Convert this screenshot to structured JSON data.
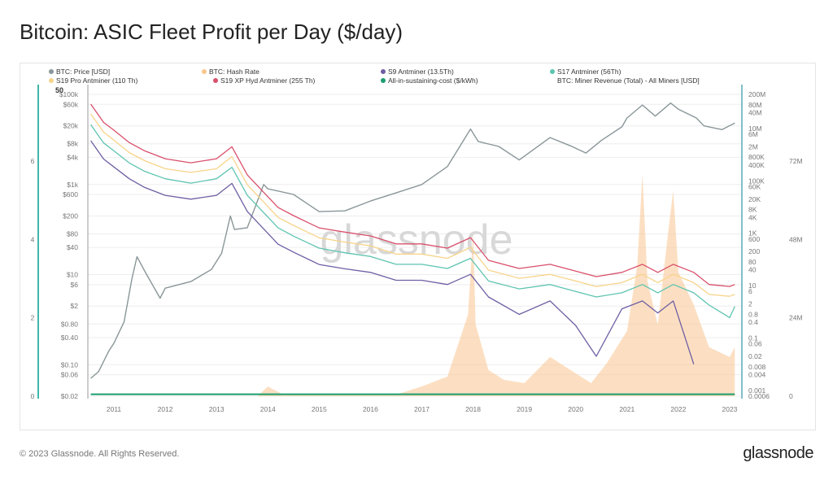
{
  "title": "Bitcoin: ASIC Fleet Profit per Day ($/day)",
  "footer": "© 2023 Glassnode. All Rights Reserved.",
  "logo": "glassnode",
  "watermark": "glassnode",
  "chart_data": {
    "type": "line",
    "title": "Bitcoin: ASIC Fleet Profit per Day ($/day)",
    "legend_position": "top",
    "grid": true,
    "legend": [
      {
        "name": "BTC: Price [USD]",
        "color": "#8a9699"
      },
      {
        "name": "BTC: Hash Rate",
        "color": "#f2a33a",
        "hidden": true
      },
      {
        "name": "S9 Antminer (13.5Th)",
        "color": "#6f5fa3"
      },
      {
        "name": "S17 Antminer (56Th)",
        "color": "#5ec4b0"
      },
      {
        "name": "S19 Pro Antminer (110 Th)",
        "color": "#f7d48a"
      },
      {
        "name": "S19 XP Hyd Antminer (255 Th)",
        "color": "#d9506b"
      },
      {
        "name": "All-in-sustaining-cost ($/kWh)",
        "color": "#1a9e6e"
      },
      {
        "name": "BTC: Miner Revenue (Total) - All Miners [USD]",
        "color": "#f9c58f"
      }
    ],
    "x_ticks": [
      "2011",
      "2012",
      "2013",
      "2014",
      "2015",
      "2016",
      "2017",
      "2018",
      "2019",
      "2020",
      "2021",
      "2022",
      "2023"
    ],
    "price_axis": {
      "scale": "log",
      "range": [
        0.02,
        100000
      ],
      "top_label": "50",
      "ticks": [
        [
          "$100k",
          100000
        ],
        [
          "$60k",
          60000
        ],
        [
          "$20k",
          20000
        ],
        [
          "$8k",
          8000
        ],
        [
          "$4k",
          4000
        ],
        [
          "$1k",
          1000
        ],
        [
          "$600",
          600
        ],
        [
          "$200",
          200
        ],
        [
          "$80",
          80
        ],
        [
          "$40",
          40
        ],
        [
          "$10",
          10
        ],
        [
          "$6",
          6
        ],
        [
          "$2",
          2
        ],
        [
          "$0.80",
          0.8
        ],
        [
          "$0.40",
          0.4
        ],
        [
          "$0.10",
          0.1
        ],
        [
          "$0.06",
          0.06
        ],
        [
          "$0.02",
          0.02
        ]
      ]
    },
    "cost_axis": {
      "scale": "linear",
      "range": [
        0,
        8
      ],
      "ticks": [
        [
          "0",
          0
        ],
        [
          "2",
          2
        ],
        [
          "4",
          4
        ],
        [
          "6",
          6
        ]
      ]
    },
    "profit_axis": {
      "scale": "log",
      "range": [
        0.0006,
        200000000
      ],
      "ticks": [
        [
          "200M",
          200000000.0
        ],
        [
          "80M",
          80000000.0
        ],
        [
          "40M",
          40000000.0
        ],
        [
          "10M",
          10000000.0
        ],
        [
          "6M",
          6000000.0
        ],
        [
          "2M",
          2000000.0
        ],
        [
          "800K",
          800000.0
        ],
        [
          "400K",
          400000.0
        ],
        [
          "100K",
          100000.0
        ],
        [
          "60K",
          60000.0
        ],
        [
          "20K",
          20000.0
        ],
        [
          "8K",
          8000.0
        ],
        [
          "4K",
          4000.0
        ],
        [
          "1K",
          1000.0
        ],
        [
          "600",
          600
        ],
        [
          "200",
          200
        ],
        [
          "80",
          80
        ],
        [
          "40",
          40
        ],
        [
          "10",
          10
        ],
        [
          "6",
          6
        ],
        [
          "2",
          2
        ],
        [
          "0.8",
          0.8
        ],
        [
          "0.4",
          0.4
        ],
        [
          "0.1",
          0.1
        ],
        [
          "0.06",
          0.06
        ],
        [
          "0.02",
          0.02
        ],
        [
          "0.008",
          0.008
        ],
        [
          "0.004",
          0.004
        ],
        [
          "0.001",
          0.001
        ],
        [
          "0.0006",
          0.0006
        ]
      ]
    },
    "revenue_axis": {
      "scale": "linear",
      "range": [
        0,
        92
      ],
      "unit": "M",
      "ticks": [
        [
          "0",
          0
        ],
        [
          "24M",
          24
        ],
        [
          "48M",
          48
        ],
        [
          "72M",
          72
        ]
      ]
    },
    "price": {
      "x": [
        2010.55,
        2010.7,
        2010.9,
        2011.0,
        2011.2,
        2011.35,
        2011.45,
        2011.6,
        2011.9,
        2012.0,
        2012.5,
        2012.9,
        2013.1,
        2013.27,
        2013.35,
        2013.6,
        2013.92,
        2014.0,
        2014.5,
        2015.0,
        2015.5,
        2016.0,
        2016.5,
        2017.0,
        2017.5,
        2017.95,
        2018.1,
        2018.5,
        2018.9,
        2019.5,
        2019.9,
        2020.2,
        2020.5,
        2020.9,
        2021.0,
        2021.3,
        2021.55,
        2021.85,
        2022.0,
        2022.35,
        2022.5,
        2022.85,
        2023.1
      ],
      "y": [
        0.05,
        0.07,
        0.2,
        0.3,
        0.9,
        8,
        25,
        12,
        3,
        5,
        7,
        13,
        30,
        200,
        100,
        110,
        1000,
        800,
        600,
        250,
        260,
        430,
        650,
        1000,
        2500,
        17000,
        9000,
        7000,
        3500,
        11000,
        7200,
        5000,
        9500,
        19000,
        30000,
        58000,
        33000,
        64000,
        47000,
        30000,
        20000,
        16500,
        23000
      ]
    },
    "profit_x": [
      2010.55,
      2010.8,
      2011.0,
      2011.3,
      2011.6,
      2012.0,
      2012.5,
      2013.0,
      2013.3,
      2013.6,
      2013.9,
      2014.2,
      2014.5,
      2015.0,
      2015.5,
      2016.0,
      2016.5,
      2017.0,
      2017.5,
      2017.95,
      2018.3,
      2018.9,
      2019.5,
      2020.0,
      2020.4,
      2020.9,
      2021.3,
      2021.6,
      2021.9,
      2022.3,
      2022.6,
      2023.0,
      2023.1
    ],
    "series": [
      {
        "name": "S19 XP Hyd Antminer (255 Th)",
        "values": [
          85000000,
          17000000,
          8600000,
          2900000,
          1400000,
          700000,
          490000,
          700000,
          2000000,
          170000,
          40000,
          9600,
          4700,
          1600,
          1100,
          790,
          390,
          390,
          270,
          680,
          92,
          45,
          65,
          36,
          22,
          32,
          65,
          32,
          65,
          32,
          11,
          9.3,
          11
        ]
      },
      {
        "name": "S19 Pro Antminer (110 Th)",
        "values": [
          36000000,
          7200000,
          3600000,
          1200000,
          590000,
          290000,
          210000,
          290000,
          840000,
          71000,
          17000,
          4000,
          2000,
          670,
          460,
          330,
          160,
          160,
          110,
          290,
          39,
          19,
          27,
          15,
          9.2,
          13,
          27,
          13,
          27,
          13,
          4.6,
          3.9,
          4.6
        ]
      },
      {
        "name": "S17 Antminer (56Th)",
        "values": [
          14000000,
          2800000,
          1400000,
          480000,
          230000,
          120000,
          82000,
          120000,
          330000,
          28000,
          6700,
          1600,
          780,
          270,
          180,
          130,
          65,
          65,
          45,
          110,
          15,
          7.5,
          11,
          6,
          3.7,
          5.3,
          11,
          5.3,
          11,
          5.3,
          1.8,
          0.6,
          1.6
        ]
      },
      {
        "name": "S9 Antminer (13.5Th)",
        "values": [
          3400000,
          680000,
          340000,
          120000,
          56000,
          28000,
          20000,
          28000,
          80000,
          6800,
          1600,
          380,
          190,
          64,
          44,
          32,
          16,
          16,
          11,
          27,
          3.7,
          0.8,
          2.6,
          0.3,
          0.02,
          1.3,
          2.6,
          0.9,
          2.6,
          0.01,
          null,
          null,
          null
        ]
      }
    ],
    "all_in_cost": {
      "x": [
        2010.55,
        2023.1
      ],
      "y": [
        0.05,
        0.05
      ]
    },
    "miner_revenue": {
      "x": [
        2010.55,
        2013.8,
        2014.0,
        2014.3,
        2016.5,
        2017.0,
        2017.5,
        2017.9,
        2018.0,
        2018.05,
        2018.3,
        2018.6,
        2019.0,
        2019.5,
        2019.9,
        2020.3,
        2020.6,
        2021.0,
        2021.2,
        2021.3,
        2021.4,
        2021.6,
        2021.8,
        2021.9,
        2022.0,
        2022.3,
        2022.6,
        2023.0,
        2023.1
      ],
      "y": [
        0,
        0,
        3,
        0.5,
        0.5,
        3,
        6,
        25,
        50,
        22,
        8,
        5,
        4,
        12,
        8,
        4,
        10,
        20,
        40,
        68,
        35,
        22,
        50,
        63,
        38,
        28,
        15,
        12,
        15
      ]
    }
  }
}
